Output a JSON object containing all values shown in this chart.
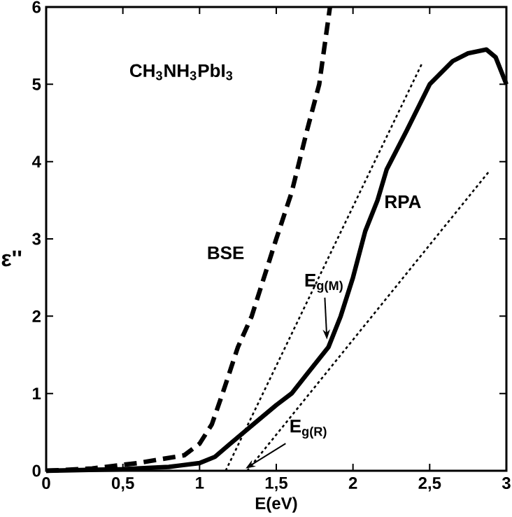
{
  "chart_data": {
    "type": "line",
    "xlabel": "E(eV)",
    "ylabel": "ε''",
    "xlim": [
      0,
      3
    ],
    "ylim": [
      0,
      6
    ],
    "xticks": [
      0,
      {
        "value": 0.5,
        "label": "0,5"
      },
      1,
      {
        "value": 1.5,
        "label": "1,5"
      },
      2,
      {
        "value": 2.5,
        "label": "2,5"
      },
      3
    ],
    "yticks": [
      0,
      1,
      2,
      3,
      4,
      5,
      6
    ],
    "grid": false,
    "legend": false,
    "series": [
      {
        "name": "BSE",
        "color": "#000000",
        "line_style": "dashed",
        "x": [
          0,
          0.3,
          0.6,
          0.9,
          1.0,
          1.08,
          1.15,
          1.25,
          1.34,
          1.42,
          1.5,
          1.6,
          1.7,
          1.78,
          1.85
        ],
        "values": [
          0,
          0.03,
          0.1,
          0.2,
          0.35,
          0.6,
          1.0,
          1.6,
          2.0,
          2.5,
          3.0,
          3.6,
          4.4,
          5.0,
          6.0
        ]
      },
      {
        "name": "RPA",
        "color": "#000000",
        "line_style": "solid",
        "x": [
          0,
          0.5,
          0.8,
          1.0,
          1.1,
          1.2,
          1.35,
          1.5,
          1.6,
          1.7,
          1.84,
          1.92,
          2.0,
          2.08,
          2.16,
          2.22,
          2.35,
          2.5,
          2.65,
          2.75,
          2.87,
          2.93,
          3.0
        ],
        "values": [
          0,
          0.02,
          0.05,
          0.1,
          0.18,
          0.35,
          0.6,
          0.85,
          1.0,
          1.25,
          1.6,
          2.0,
          2.5,
          3.1,
          3.5,
          3.9,
          4.4,
          5.0,
          5.3,
          5.4,
          5.45,
          5.35,
          5.0
        ]
      },
      {
        "color": "#000000",
        "line_style": "dotted",
        "x": [
          1.17,
          2.45
        ],
        "values": [
          0,
          5.27
        ]
      },
      {
        "color": "#000000",
        "line_style": "dotted",
        "x": [
          1.31,
          2.89
        ],
        "values": [
          0,
          3.88
        ]
      }
    ],
    "annotations": [
      "CH$_{3}$NH$_{3}$PbI$_{3}$",
      {
        "text": "E$_{g(M)}$",
        "x": 1.83,
        "y": 1.7
      },
      {
        "text": "E$_{g(R)}$",
        "x": 1.3,
        "y": 0.03
      }
    ]
  }
}
